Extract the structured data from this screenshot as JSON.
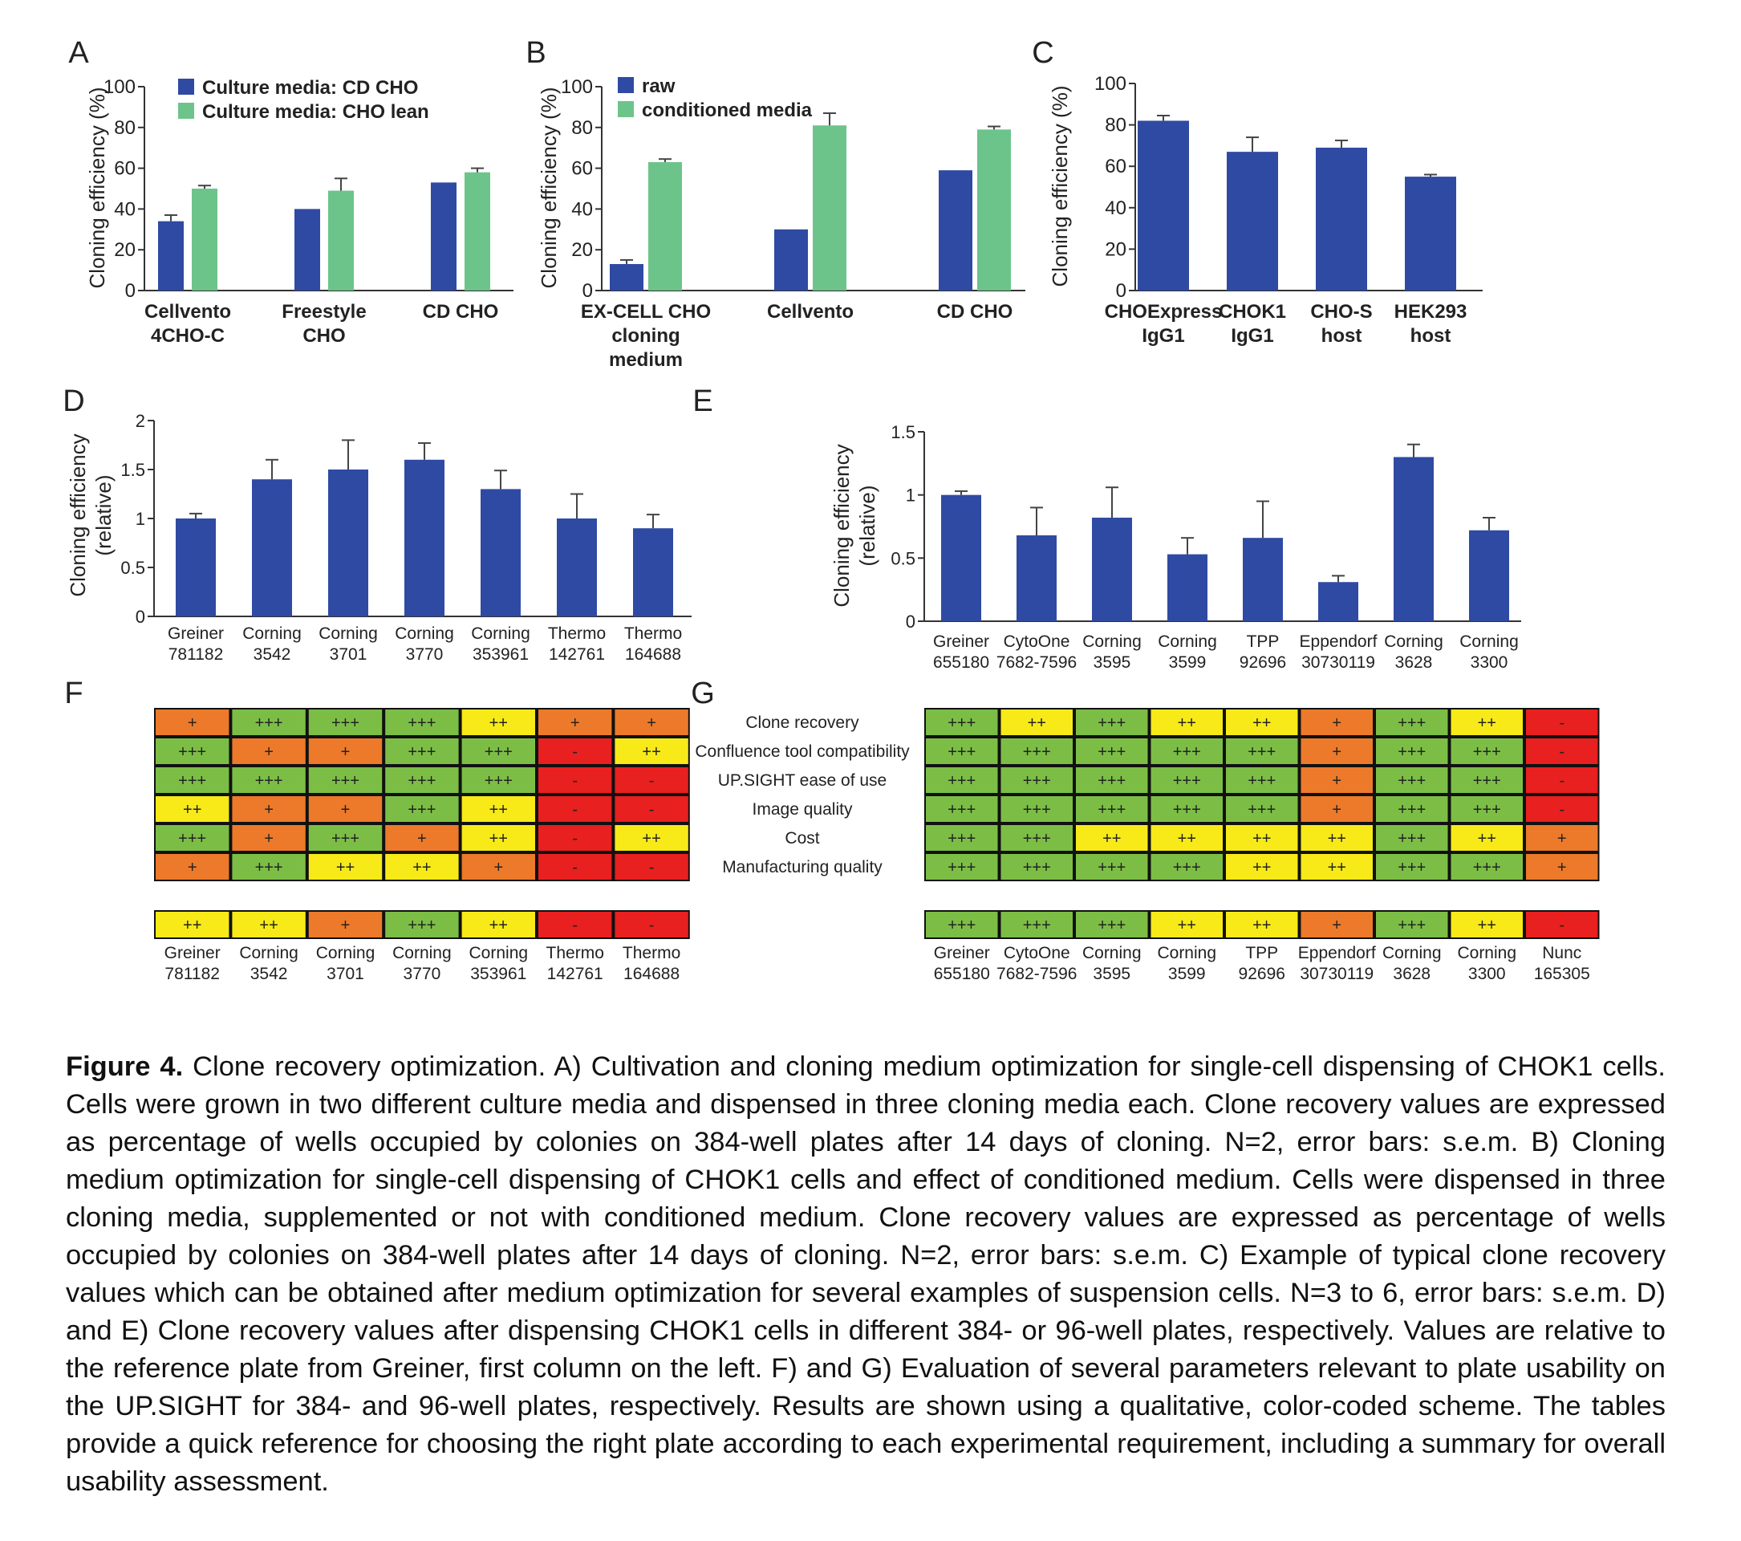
{
  "colors": {
    "blue": "#2f4aa3",
    "green": "#6cc48a",
    "score_3": "#7cbe45",
    "score_2": "#f7ea18",
    "score_1": "#ec7a2a",
    "score_0": "#e8201f"
  },
  "panels": {
    "A": "A",
    "B": "B",
    "C": "C",
    "D": "D",
    "E": "E",
    "F": "F",
    "G": "G"
  },
  "caption": {
    "heading": "Figure 4.",
    "text": "Clone recovery optimization. A) Cultivation and cloning medium optimization for single-cell dispensing of CHOK1 cells. Cells were grown in two different culture media and dispensed in three cloning media each. Clone recovery values are expressed as percentage of wells occupied by colonies on 384-well plates after 14 days of cloning. N=2, error bars: s.e.m. B) Cloning medium optimization for single-cell dispensing of CHOK1 cells and effect of conditioned medium. Cells were dispensed in three cloning media, supplemented or not with conditioned medium. Clone recovery values are expressed as percentage of wells occupied by colonies on 384-well plates after 14 days of cloning. N=2, error bars: s.e.m. C) Example of typical clone recovery values which can be obtained after medium optimization for several examples of suspension cells. N=3 to 6, error bars: s.e.m. D) and E) Clone recovery values after dispensing CHOK1 cells in different 384- or 96-well plates, respectively. Values are relative to the reference plate from Greiner, first column on the left. F) and G) Evaluation of several parameters relevant to plate usability on the UP.SIGHT for 384- and 96-well plates, respectively. Results are shown using a qualitative, color-coded scheme. The tables provide a quick reference for choosing the right plate according to each experimental requirement, including a summary for overall usability assessment."
  },
  "chart_data": [
    {
      "panel": "A",
      "type": "bar",
      "categories": [
        "Cellvento 4CHO-C",
        "Freestyle CHO",
        "CD CHO"
      ],
      "category_lines": [
        [
          "Cellvento",
          "4CHO-C"
        ],
        [
          "Freestyle",
          "CHO"
        ],
        [
          "CD CHO"
        ]
      ],
      "ylabel": "Cloning efficiency (%)",
      "ylim": [
        0,
        100
      ],
      "yticks": [
        "0",
        "20",
        "40",
        "60",
        "80",
        "100"
      ],
      "ytick_values": [
        0,
        20,
        40,
        60,
        80,
        100
      ],
      "legend": "top-left",
      "series": [
        {
          "name": "Culture media: CD CHO",
          "values": [
            34,
            40,
            53
          ],
          "errors": [
            3,
            0,
            0
          ]
        },
        {
          "name": "Culture media: CHO lean",
          "values": [
            50,
            49,
            58
          ],
          "errors": [
            1.5,
            6,
            2
          ]
        }
      ]
    },
    {
      "panel": "B",
      "type": "bar",
      "categories": [
        "EX-CELL CHO cloning medium",
        "Cellvento",
        "CD CHO"
      ],
      "category_lines": [
        [
          "EX-CELL CHO",
          "cloning",
          "medium"
        ],
        [
          "Cellvento"
        ],
        [
          "CD CHO"
        ]
      ],
      "ylabel": "Cloning efficiency (%)",
      "ylim": [
        0,
        100
      ],
      "yticks": [
        "0",
        "20",
        "40",
        "60",
        "80",
        "100"
      ],
      "ytick_values": [
        0,
        20,
        40,
        60,
        80,
        100
      ],
      "legend": "top-left",
      "series": [
        {
          "name": "raw",
          "values": [
            13,
            30,
            59
          ],
          "errors": [
            2,
            0,
            0
          ]
        },
        {
          "name": "conditioned media",
          "values": [
            63,
            81,
            79
          ],
          "errors": [
            1.5,
            6,
            1.5
          ]
        }
      ]
    },
    {
      "panel": "C",
      "type": "bar",
      "categories": [
        "CHOExpress IgG1",
        "CHOK1 IgG1",
        "CHO-S host",
        "HEK293 host"
      ],
      "category_lines": [
        [
          "CHOExpress",
          "IgG1"
        ],
        [
          "CHOK1",
          "IgG1"
        ],
        [
          "CHO-S",
          "host"
        ],
        [
          "HEK293",
          "host"
        ]
      ],
      "ylabel": "Cloning efficiency (%)",
      "ylim": [
        0,
        100
      ],
      "yticks": [
        "0",
        "20",
        "40",
        "60",
        "80",
        "100"
      ],
      "ytick_values": [
        0,
        20,
        40,
        60,
        80,
        100
      ],
      "series": [
        {
          "values": [
            82,
            67,
            69,
            55
          ],
          "errors": [
            2.5,
            7,
            3.5,
            1
          ]
        }
      ]
    },
    {
      "panel": "D",
      "type": "bar",
      "categories": [
        "Greiner 781182",
        "Corning 3542",
        "Corning 3701",
        "Corning 3770",
        "Corning 353961",
        "Thermo 142761",
        "Thermo 164688"
      ],
      "category_lines": [
        [
          "Greiner",
          "781182"
        ],
        [
          "Corning",
          "3542"
        ],
        [
          "Corning",
          "3701"
        ],
        [
          "Corning",
          "3770"
        ],
        [
          "Corning",
          "353961"
        ],
        [
          "Thermo",
          "142761"
        ],
        [
          "Thermo",
          "164688"
        ]
      ],
      "ylabel": "Cloning efficiency (relative)",
      "ylabel_lines": [
        "Cloning efficiency",
        "(relative)"
      ],
      "ylim": [
        0,
        2
      ],
      "yticks": [
        "0",
        "0.5",
        "1",
        "1.5",
        "2"
      ],
      "ytick_values": [
        0,
        0.5,
        1,
        1.5,
        2
      ],
      "series": [
        {
          "values": [
            1.0,
            1.4,
            1.5,
            1.6,
            1.3,
            1.0,
            0.9
          ],
          "errors": [
            0.05,
            0.2,
            0.3,
            0.17,
            0.19,
            0.25,
            0.14
          ]
        }
      ]
    },
    {
      "panel": "E",
      "type": "bar",
      "categories": [
        "Greiner 655180",
        "CytoOne 7682-7596",
        "Corning 3595",
        "Corning 3599",
        "TPP 92696",
        "Eppendorf 30730119",
        "Corning 3628",
        "Corning 3300"
      ],
      "category_lines": [
        [
          "Greiner",
          "655180"
        ],
        [
          "CytoOne",
          "7682-7596"
        ],
        [
          "Corning",
          "3595"
        ],
        [
          "Corning",
          "3599"
        ],
        [
          "TPP",
          "92696"
        ],
        [
          "Eppendorf",
          "30730119"
        ],
        [
          "Corning",
          "3628"
        ],
        [
          "Corning",
          "3300"
        ]
      ],
      "ylabel": "Cloning efficiency (relative)",
      "ylabel_lines": [
        "Cloning efficiency",
        "(relative)"
      ],
      "ylim": [
        0,
        1.5
      ],
      "yticks": [
        "0",
        "0.5",
        "1",
        "1.5"
      ],
      "ytick_values": [
        0,
        0.5,
        1,
        1.5
      ],
      "series": [
        {
          "values": [
            1.0,
            0.68,
            0.82,
            0.53,
            0.66,
            0.31,
            1.3,
            0.72
          ],
          "errors": [
            0.03,
            0.22,
            0.24,
            0.13,
            0.29,
            0.05,
            0.1,
            0.1
          ]
        }
      ]
    },
    {
      "panel": "F",
      "type": "table",
      "columns": [
        "Greiner 781182",
        "Corning 3542",
        "Corning 3701",
        "Corning 3770",
        "Corning 353961",
        "Thermo 142761",
        "Thermo 164688"
      ],
      "column_lines": [
        [
          "Greiner",
          "781182"
        ],
        [
          "Corning",
          "3542"
        ],
        [
          "Corning",
          "3701"
        ],
        [
          "Corning",
          "3770"
        ],
        [
          "Corning",
          "353961"
        ],
        [
          "Thermo",
          "142761"
        ],
        [
          "Thermo",
          "164688"
        ]
      ],
      "rows": [
        [
          "+",
          "+++",
          "+++",
          "+++",
          "++",
          "+",
          "+"
        ],
        [
          "+++",
          "+",
          "+",
          "+++",
          "+++",
          "-",
          "++"
        ],
        [
          "+++",
          "+++",
          "+++",
          "+++",
          "+++",
          "-",
          "-"
        ],
        [
          "++",
          "+",
          "+",
          "+++",
          "++",
          "-",
          "-"
        ],
        [
          "+++",
          "+",
          "+++",
          "+",
          "++",
          "-",
          "++"
        ],
        [
          "+",
          "+++",
          "++",
          "++",
          "+",
          "-",
          "-"
        ]
      ],
      "summary": [
        "++",
        "++",
        "+",
        "+++",
        "++",
        "-",
        "-"
      ]
    },
    {
      "panel": "G",
      "type": "table",
      "row_labels": [
        "Clone recovery",
        "Confluence tool compatibility",
        "UP.SIGHT ease of use",
        "Image quality",
        "Cost",
        "Manufacturing quality"
      ],
      "columns": [
        "Greiner 655180",
        "CytoOne 7682-7596",
        "Corning 3595",
        "Corning 3599",
        "TPP 92696",
        "Eppendorf 30730119",
        "Corning 3628",
        "Corning 3300",
        "Nunc 165305"
      ],
      "column_lines": [
        [
          "Greiner",
          "655180"
        ],
        [
          "CytoOne",
          "7682-7596"
        ],
        [
          "Corning",
          "3595"
        ],
        [
          "Corning",
          "3599"
        ],
        [
          "TPP",
          "92696"
        ],
        [
          "Eppendorf",
          "30730119"
        ],
        [
          "Corning",
          "3628"
        ],
        [
          "Corning",
          "3300"
        ],
        [
          "Nunc",
          "165305"
        ]
      ],
      "rows": [
        [
          "+++",
          "++",
          "+++",
          "++",
          "++",
          "+",
          "+++",
          "++",
          "-"
        ],
        [
          "+++",
          "+++",
          "+++",
          "+++",
          "+++",
          "+",
          "+++",
          "+++",
          "-"
        ],
        [
          "+++",
          "+++",
          "+++",
          "+++",
          "+++",
          "+",
          "+++",
          "+++",
          "-"
        ],
        [
          "+++",
          "+++",
          "+++",
          "+++",
          "+++",
          "+",
          "+++",
          "+++",
          "-"
        ],
        [
          "+++",
          "+++",
          "++",
          "++",
          "++",
          "++",
          "+++",
          "++",
          "+"
        ],
        [
          "+++",
          "+++",
          "+++",
          "+++",
          "++",
          "++",
          "+++",
          "+++",
          "+"
        ]
      ],
      "summary": [
        "+++",
        "+++",
        "+++",
        "++",
        "++",
        "+",
        "+++",
        "++",
        "-"
      ]
    }
  ]
}
